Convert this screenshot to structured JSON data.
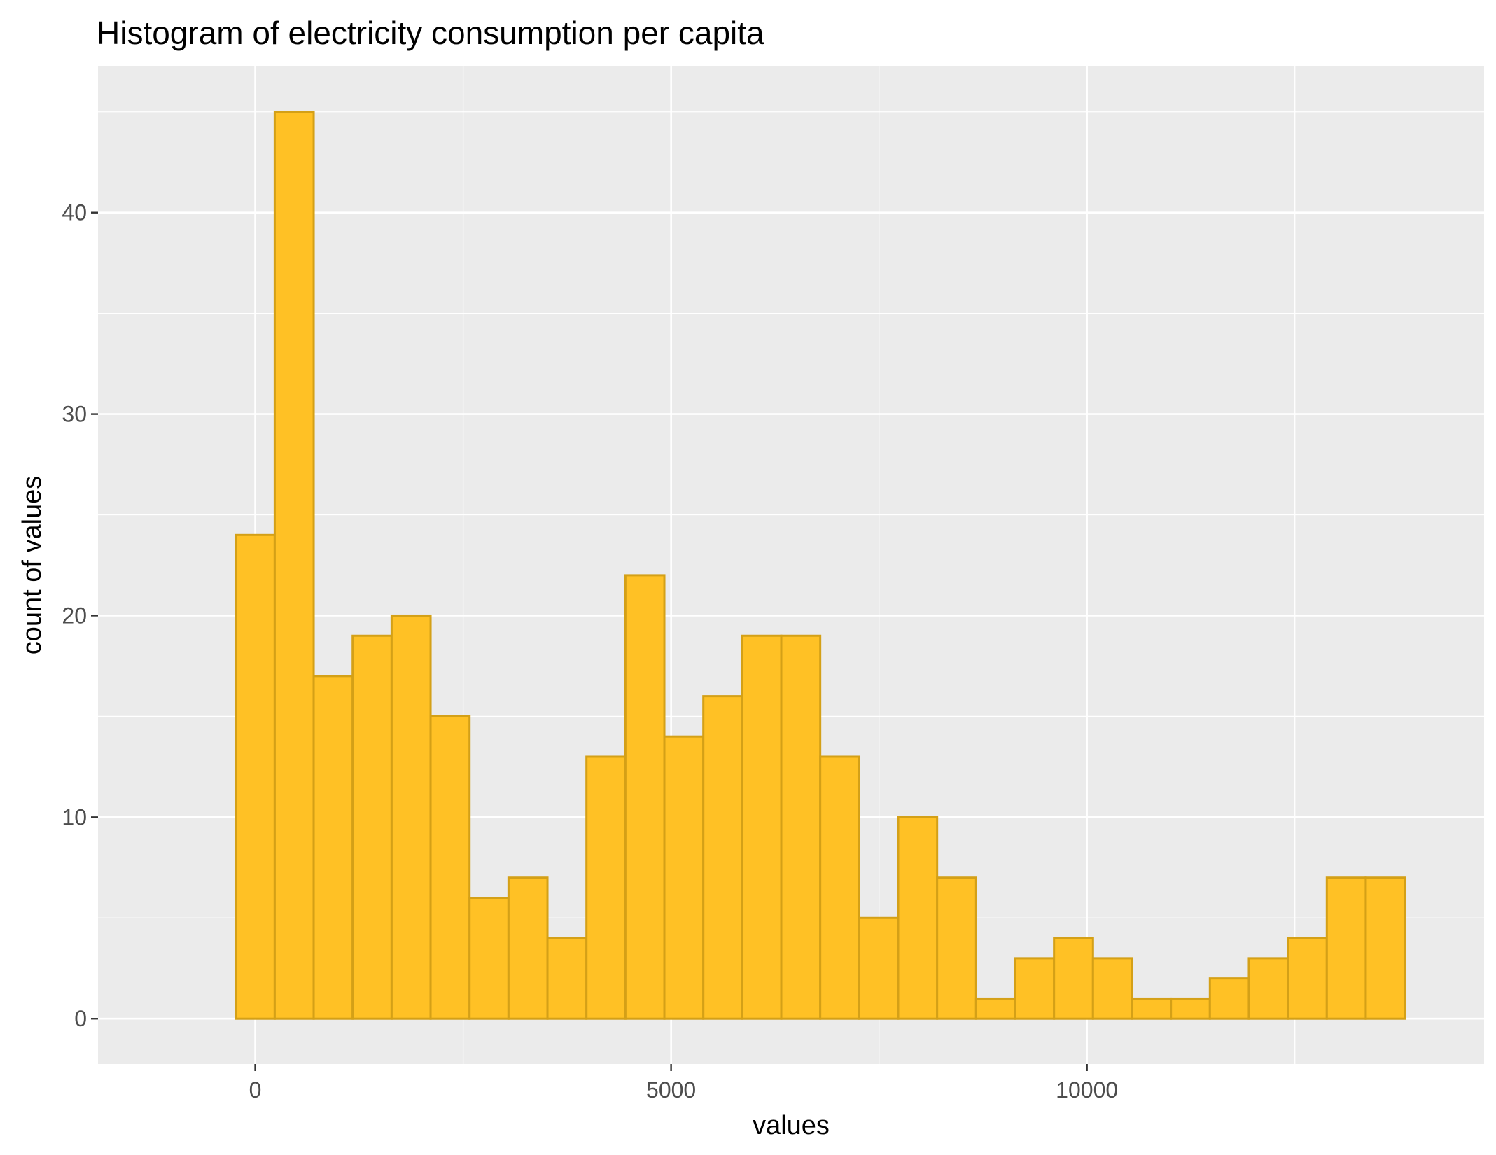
{
  "chart_data": {
    "type": "bar",
    "title": "Histogram of electricity consumption per capita",
    "xlabel": "values",
    "ylabel": "count of values",
    "bin_width": 468.5,
    "bin_start": -234.25,
    "counts": [
      24,
      45,
      17,
      19,
      20,
      15,
      6,
      7,
      4,
      13,
      22,
      14,
      16,
      19,
      19,
      13,
      5,
      10,
      7,
      1,
      3,
      4,
      3,
      1,
      1,
      2,
      3,
      4,
      7,
      7
    ],
    "xlim": [
      -1890,
      14775
    ],
    "ylim": [
      -2.25,
      47.25
    ],
    "x_ticks": [
      0,
      5000,
      10000
    ],
    "x_tick_labels": [
      "0",
      "5000",
      "10000"
    ],
    "y_ticks": [
      0,
      10,
      20,
      30,
      40
    ],
    "y_tick_labels": [
      "0",
      "10",
      "20",
      "30",
      "40"
    ],
    "grid": true,
    "colors": {
      "panel_background": "#ebebeb",
      "grid": "#ffffff",
      "bar_fill": "#ffc125",
      "bar_outline": "#d4a017"
    }
  }
}
